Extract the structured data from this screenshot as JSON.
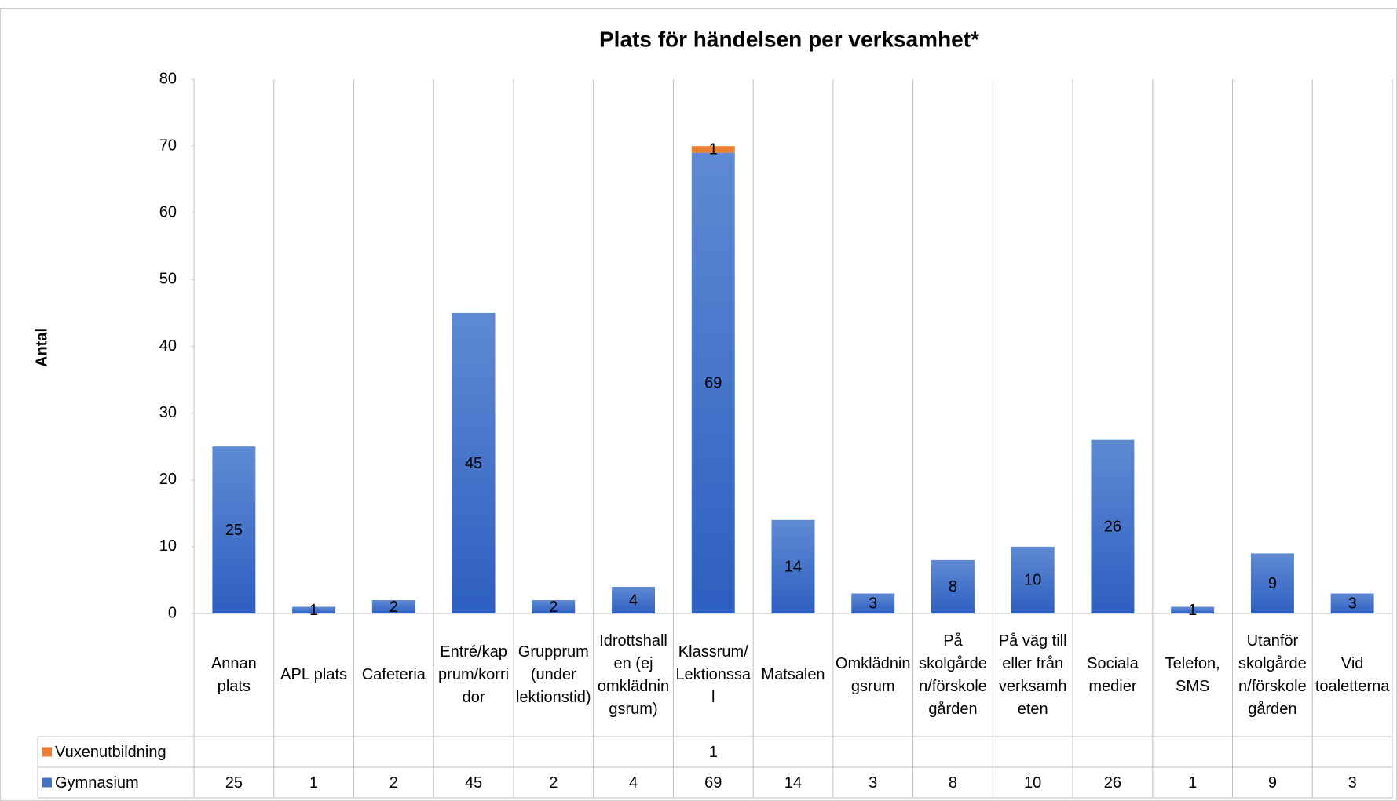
{
  "chart_data": {
    "type": "bar",
    "stacked": true,
    "title": "Plats för händelsen per verksamhet*",
    "y_label": "Antal",
    "categories": [
      "Annan plats",
      "APL plats",
      "Cafeteria",
      "Entré/kapprum/korridor",
      "Grupprum (under lektionstid)",
      "Idrottshallen (ej omklädningsrum)",
      "Klassrum/Lektionssal",
      "Matsalen",
      "Omklädningsrum",
      "På skolgården/förskolegården",
      "På väg till eller från verksamheten",
      "Sociala medier",
      "Telefon, SMS",
      "Utanför skolgården/förskolegården",
      "Vid toaletterna"
    ],
    "series": [
      {
        "name": "Gymnasium",
        "color": "#4472c4",
        "values": [
          25,
          1,
          2,
          45,
          2,
          4,
          69,
          14,
          3,
          8,
          10,
          26,
          1,
          9,
          3
        ]
      },
      {
        "name": "Vuxenutbildning",
        "color": "#ed7d31",
        "values": [
          null,
          null,
          null,
          null,
          null,
          null,
          1,
          null,
          null,
          null,
          null,
          null,
          null,
          null,
          null
        ]
      }
    ],
    "ylim": [
      0,
      80
    ],
    "yticks": [
      0,
      10,
      20,
      30,
      40,
      50,
      60,
      70,
      80
    ],
    "data_table": true
  }
}
